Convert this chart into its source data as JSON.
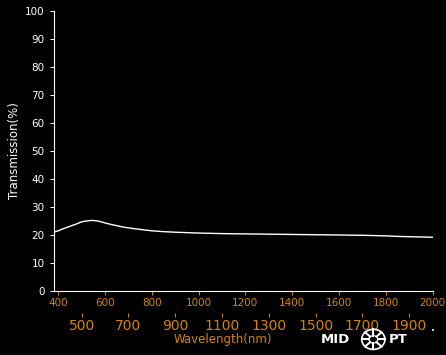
{
  "background_color": "#000000",
  "plot_bg_color": "#000000",
  "line_color": "#ffffff",
  "xlabel": "Wavelength(nm)",
  "ylabel": "Transmission(%)",
  "xlabel_color": "#d4840a",
  "ylabel_color": "#ffffff",
  "xtick_color": "#d4840a",
  "ytick_color": "#ffffff",
  "spine_color": "#ffffff",
  "xmin": 380,
  "xmax": 2000,
  "ymin": 0,
  "ymax": 100,
  "xticks_row1": [
    400,
    600,
    800,
    1000,
    1200,
    1400,
    1600,
    1800,
    2000
  ],
  "xticks_row2": [
    500,
    700,
    900,
    1100,
    1300,
    1500,
    1700,
    1900
  ],
  "yticks": [
    0,
    10,
    20,
    30,
    40,
    50,
    60,
    70,
    80,
    90,
    100
  ],
  "wavelengths": [
    380,
    400,
    420,
    440,
    460,
    480,
    500,
    520,
    540,
    560,
    580,
    600,
    640,
    680,
    720,
    760,
    800,
    850,
    900,
    1000,
    1100,
    1200,
    1300,
    1400,
    1500,
    1600,
    1700,
    1800,
    1850,
    1900,
    1950,
    2000
  ],
  "transmission": [
    21.0,
    21.5,
    22.2,
    22.8,
    23.4,
    24.0,
    24.7,
    25.0,
    25.2,
    25.1,
    24.8,
    24.3,
    23.5,
    22.8,
    22.3,
    21.9,
    21.5,
    21.2,
    21.0,
    20.7,
    20.5,
    20.4,
    20.3,
    20.2,
    20.1,
    20.0,
    19.9,
    19.7,
    19.5,
    19.4,
    19.3,
    19.2
  ],
  "tick_fontsize": 7.5,
  "axis_label_fontsize": 8.5
}
